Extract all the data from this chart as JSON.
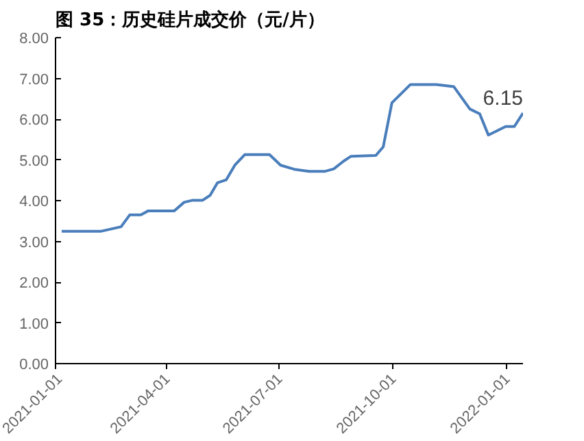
{
  "chart_data": {
    "type": "line",
    "title": "图 35：历史硅片成交价（元/片）",
    "x": [
      "2021-01-06",
      "2021-02-07",
      "2021-02-23",
      "2021-03-02",
      "2021-03-11",
      "2021-03-17",
      "2021-04-07",
      "2021-04-15",
      "2021-04-22",
      "2021-04-30",
      "2021-05-06",
      "2021-05-12",
      "2021-05-19",
      "2021-05-26",
      "2021-06-03",
      "2021-06-23",
      "2021-07-02",
      "2021-07-13",
      "2021-07-25",
      "2021-08-07",
      "2021-08-14",
      "2021-08-22",
      "2021-08-28",
      "2021-09-17",
      "2021-09-23",
      "2021-09-30",
      "2021-10-15",
      "2021-11-05",
      "2021-11-19",
      "2021-12-02",
      "2021-12-10",
      "2021-12-17",
      "2021-12-31",
      "2022-01-07",
      "2022-01-14"
    ],
    "series": [
      {
        "color": "#4a7ebb",
        "values": [
          3.25,
          3.25,
          3.36,
          3.65,
          3.65,
          3.75,
          3.75,
          3.96,
          4.01,
          4.01,
          4.13,
          4.44,
          4.51,
          4.87,
          5.13,
          5.13,
          4.87,
          4.77,
          4.72,
          4.72,
          4.78,
          4.97,
          5.09,
          5.11,
          5.32,
          6.4,
          6.85,
          6.85,
          6.8,
          6.25,
          6.13,
          5.61,
          5.82,
          5.82,
          6.15
        ]
      }
    ],
    "xlim": [
      "2021-01-01",
      "2022-01-14"
    ],
    "xticks": [
      "2021-01-01",
      "2021-04-01",
      "2021-07-01",
      "2021-10-01",
      "2022-01-01"
    ],
    "ylim": [
      0,
      8
    ],
    "yticks": [
      {
        "value": 0,
        "label": "0.00"
      },
      {
        "value": 1,
        "label": "1.00"
      },
      {
        "value": 2,
        "label": "2.00"
      },
      {
        "value": 3,
        "label": "3.00"
      },
      {
        "value": 4,
        "label": "4.00"
      },
      {
        "value": 5,
        "label": "5.00"
      },
      {
        "value": 6,
        "label": "6.00"
      },
      {
        "value": 7,
        "label": "7.00"
      },
      {
        "value": 8,
        "label": "8.00"
      }
    ],
    "annotations": [
      {
        "text": "6.15",
        "x": "2022-01-14",
        "y": 6.15
      }
    ],
    "grid": false,
    "marker": "none",
    "line_style": "solid"
  }
}
